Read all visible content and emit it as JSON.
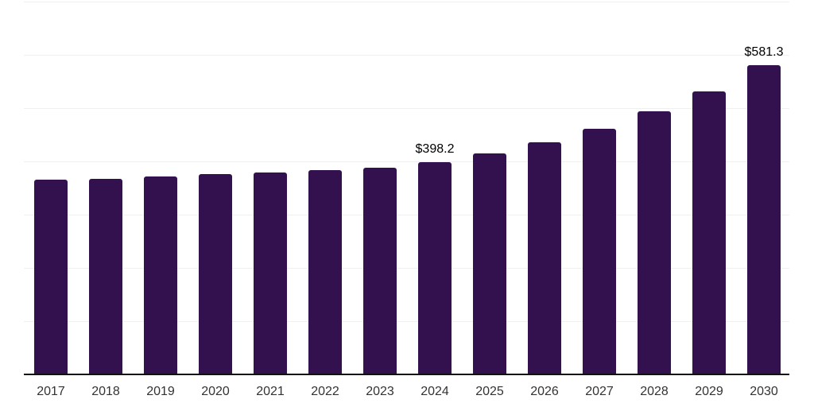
{
  "chart_data": {
    "type": "bar",
    "title": "",
    "xlabel": "",
    "ylabel": "",
    "categories": [
      "2017",
      "2018",
      "2019",
      "2020",
      "2021",
      "2022",
      "2023",
      "2024",
      "2025",
      "2026",
      "2027",
      "2028",
      "2029",
      "2030"
    ],
    "values": [
      365.8,
      367.7,
      372.0,
      375.5,
      378.4,
      383.3,
      387.6,
      398.2,
      414.4,
      436.0,
      461.5,
      493.5,
      532.0,
      581.3
    ],
    "labeled_points": [
      {
        "category": "2024",
        "label": "$398.2"
      },
      {
        "category": "2030",
        "label": "$581.3"
      }
    ],
    "ylim": [
      0,
      700
    ],
    "gridline_interval": 100,
    "grid": true,
    "legend": "none",
    "bar_color": "#33104e",
    "gridline_color": "#f0f0f0",
    "axis_line_color": "#111111",
    "tick_label_color": "#333333",
    "data_label_color": "#000000"
  }
}
